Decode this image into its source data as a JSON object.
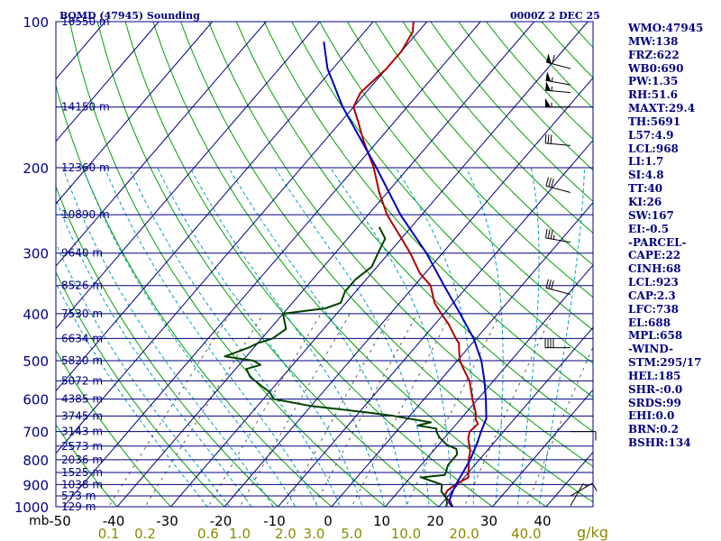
{
  "header": {
    "station": "BQMD (47945) Sounding",
    "time": "0000Z  2 DEC 25"
  },
  "colors": {
    "frame": "#000080",
    "isobar": "#000080",
    "isotherm": "#000080",
    "dry_adiabat": "#00a000",
    "moist_adiabat": "#00a0c0",
    "mixing_ratio": "#606060",
    "temperature": "#b00000",
    "dewpoint": "#004000",
    "parcel": "#0000c0",
    "axis_text": "#000000",
    "mixing_ratio_labels": "#8a8a00"
  },
  "chart_data": {
    "type": "skew-t",
    "pressure_axis": {
      "unit": "mb",
      "ticks": [
        100,
        200,
        300,
        400,
        500,
        600,
        700,
        800,
        900,
        1000
      ],
      "range": [
        100,
        1000
      ],
      "scale": "log"
    },
    "temperature_axis": {
      "ticks": [
        -50,
        -40,
        -30,
        -20,
        -10,
        0,
        10,
        20,
        30,
        40
      ],
      "tick_labels": [
        "-50",
        "-40",
        "-30",
        "-20",
        "-10",
        "0",
        "10",
        "20",
        "30",
        "40"
      ],
      "range": [
        -50,
        45
      ]
    },
    "mixing_ratio_axis": {
      "unit": "g/kg",
      "ticks": [
        0.1,
        0.2,
        0.6,
        1.0,
        2.0,
        3.0,
        5.0,
        10.0,
        20.0,
        40.0
      ],
      "tick_labels": [
        "0.1",
        "0.2",
        "0.6",
        "1.0",
        "2.0",
        "3.0",
        "5.0",
        "10.0",
        "20.0",
        "40.0"
      ]
    },
    "height_labels": [
      {
        "p": 100,
        "label": "16550 m"
      },
      {
        "p": 150,
        "label": "14150 m"
      },
      {
        "p": 200,
        "label": "12360 m"
      },
      {
        "p": 250,
        "label": "10890 m"
      },
      {
        "p": 300,
        "label": "9640 m"
      },
      {
        "p": 350,
        "label": "8526 m"
      },
      {
        "p": 400,
        "label": "7530 m"
      },
      {
        "p": 450,
        "label": "6634 m"
      },
      {
        "p": 500,
        "label": "5820 m"
      },
      {
        "p": 550,
        "label": "5072 m"
      },
      {
        "p": 600,
        "label": "4385 m"
      },
      {
        "p": 650,
        "label": "3745 m"
      },
      {
        "p": 700,
        "label": "3143 m"
      },
      {
        "p": 750,
        "label": "2573 m"
      },
      {
        "p": 800,
        "label": "2036 m"
      },
      {
        "p": 850,
        "label": "1525 m"
      },
      {
        "p": 900,
        "label": "1038 m"
      },
      {
        "p": 950,
        "label": "573 m"
      },
      {
        "p": 1000,
        "label": "129 m"
      }
    ],
    "series": [
      {
        "key": "temperature",
        "points": [
          {
            "p": 1008,
            "t": 23.0
          },
          {
            "p": 980,
            "t": 21.5
          },
          {
            "p": 950,
            "t": 19.3
          },
          {
            "p": 925,
            "t": 19.0
          },
          {
            "p": 900,
            "t": 19.5
          },
          {
            "p": 870,
            "t": 20.8
          },
          {
            "p": 850,
            "t": 20.0
          },
          {
            "p": 820,
            "t": 18.9
          },
          {
            "p": 800,
            "t": 18.0
          },
          {
            "p": 770,
            "t": 17.0
          },
          {
            "p": 750,
            "t": 16.0
          },
          {
            "p": 725,
            "t": 14.6
          },
          {
            "p": 700,
            "t": 13.7
          },
          {
            "p": 675,
            "t": 14.0
          },
          {
            "p": 660,
            "t": 12.8
          },
          {
            "p": 640,
            "t": 11.8
          },
          {
            "p": 600,
            "t": 9.0
          },
          {
            "p": 550,
            "t": 5.5
          },
          {
            "p": 520,
            "t": 2.5
          },
          {
            "p": 500,
            "t": 0.5
          },
          {
            "p": 480,
            "t": -1.0
          },
          {
            "p": 460,
            "t": -2.5
          },
          {
            "p": 450,
            "t": -3.8
          },
          {
            "p": 420,
            "t": -7.5
          },
          {
            "p": 400,
            "t": -10.5
          },
          {
            "p": 380,
            "t": -13.5
          },
          {
            "p": 350,
            "t": -17.0
          },
          {
            "p": 330,
            "t": -21.0
          },
          {
            "p": 300,
            "t": -26.0
          },
          {
            "p": 275,
            "t": -31.0
          },
          {
            "p": 250,
            "t": -36.5
          },
          {
            "p": 225,
            "t": -41.5
          },
          {
            "p": 200,
            "t": -46.5
          },
          {
            "p": 175,
            "t": -53.0
          },
          {
            "p": 160,
            "t": -57.0
          },
          {
            "p": 150,
            "t": -60.0
          },
          {
            "p": 140,
            "t": -61.0
          },
          {
            "p": 125,
            "t": -60.0
          },
          {
            "p": 115,
            "t": -60.0
          },
          {
            "p": 105,
            "t": -61.0
          },
          {
            "p": 100,
            "t": -62.5
          }
        ]
      },
      {
        "key": "dewpoint",
        "points": [
          {
            "p": 1008,
            "t": 21.5
          },
          {
            "p": 985,
            "t": 21.0
          },
          {
            "p": 960,
            "t": 20.0
          },
          {
            "p": 930,
            "t": 18.0
          },
          {
            "p": 900,
            "t": 17.0
          },
          {
            "p": 870,
            "t": 12.0
          },
          {
            "p": 860,
            "t": 16.0
          },
          {
            "p": 850,
            "t": 15.8
          },
          {
            "p": 820,
            "t": 15.0
          },
          {
            "p": 800,
            "t": 15.0
          },
          {
            "p": 780,
            "t": 15.0
          },
          {
            "p": 760,
            "t": 14.0
          },
          {
            "p": 745,
            "t": 11.5
          },
          {
            "p": 720,
            "t": 9.0
          },
          {
            "p": 700,
            "t": 7.5
          },
          {
            "p": 690,
            "t": 7.0
          },
          {
            "p": 680,
            "t": 3.0
          },
          {
            "p": 670,
            "t": 5.0
          },
          {
            "p": 660,
            "t": 1.0
          },
          {
            "p": 650,
            "t": -3.0
          },
          {
            "p": 640,
            "t": -8.0
          },
          {
            "p": 620,
            "t": -20.0
          },
          {
            "p": 600,
            "t": -28.0
          },
          {
            "p": 580,
            "t": -30.0
          },
          {
            "p": 560,
            "t": -33.0
          },
          {
            "p": 540,
            "t": -36.0
          },
          {
            "p": 520,
            "t": -38.0
          },
          {
            "p": 510,
            "t": -36.0
          },
          {
            "p": 500,
            "t": -38.0
          },
          {
            "p": 490,
            "t": -44.0
          },
          {
            "p": 470,
            "t": -41.0
          },
          {
            "p": 460,
            "t": -40.0
          },
          {
            "p": 450,
            "t": -38.0
          },
          {
            "p": 430,
            "t": -37.0
          },
          {
            "p": 410,
            "t": -39.0
          },
          {
            "p": 400,
            "t": -40.0
          },
          {
            "p": 390,
            "t": -33.0
          },
          {
            "p": 380,
            "t": -31.0
          },
          {
            "p": 360,
            "t": -32.0
          },
          {
            "p": 340,
            "t": -32.0
          },
          {
            "p": 320,
            "t": -31.0
          },
          {
            "p": 300,
            "t": -32.0
          },
          {
            "p": 280,
            "t": -33.0
          },
          {
            "p": 265,
            "t": -36.0
          }
        ]
      },
      {
        "key": "parcel",
        "points": [
          {
            "p": 1008,
            "t": 23.0
          },
          {
            "p": 980,
            "t": 21.2
          },
          {
            "p": 950,
            "t": 20.5
          },
          {
            "p": 923,
            "t": 20.0
          },
          {
            "p": 900,
            "t": 19.6
          },
          {
            "p": 850,
            "t": 19.0
          },
          {
            "p": 800,
            "t": 18.3
          },
          {
            "p": 750,
            "t": 17.2
          },
          {
            "p": 738,
            "t": 16.9
          },
          {
            "p": 700,
            "t": 15.8
          },
          {
            "p": 658,
            "t": 14.7
          },
          {
            "p": 600,
            "t": 11.5
          },
          {
            "p": 550,
            "t": 8.3
          },
          {
            "p": 500,
            "t": 4.5
          },
          {
            "p": 450,
            "t": -0.5
          },
          {
            "p": 400,
            "t": -7.0
          },
          {
            "p": 350,
            "t": -14.5
          },
          {
            "p": 300,
            "t": -23.0
          },
          {
            "p": 250,
            "t": -34.0
          },
          {
            "p": 200,
            "t": -46.0
          },
          {
            "p": 150,
            "t": -62.0
          },
          {
            "p": 125,
            "t": -71.0
          },
          {
            "p": 110,
            "t": -76.0
          }
        ]
      }
    ],
    "wind_barbs": [
      {
        "p": 125,
        "dir": 285,
        "spd": 60
      },
      {
        "p": 135,
        "dir": 280,
        "spd": 55
      },
      {
        "p": 140,
        "dir": 275,
        "spd": 55
      },
      {
        "p": 150,
        "dir": 270,
        "spd": 55
      },
      {
        "p": 180,
        "dir": 275,
        "spd": 30
      },
      {
        "p": 225,
        "dir": 285,
        "spd": 30
      },
      {
        "p": 285,
        "dir": 280,
        "spd": 35
      },
      {
        "p": 365,
        "dir": 285,
        "spd": 30
      },
      {
        "p": 470,
        "dir": 270,
        "spd": 40
      },
      {
        "p": 700,
        "dir": 90,
        "spd": 10
      },
      {
        "p": 950,
        "dir": 60,
        "spd": 10
      },
      {
        "p": 995,
        "dir": 30,
        "spd": 5
      }
    ]
  },
  "indices": [
    "WMO:47945",
    "MW:138",
    "FRZ:622",
    "WB0:690",
    "PW:1.35",
    "RH:51.6",
    "MAXT:29.4",
    "TH:5691",
    "L57:4.9",
    "LCL:968",
    "LI:1.7",
    "SI:4.8",
    "TT:40",
    "KI:26",
    "SW:167",
    "EI:-0.5",
    "-PARCEL-",
    "CAPE:22",
    "CINH:68",
    "LCL:923",
    "CAP:2.3",
    "LFC:738",
    "EL:688",
    "MPL:658",
    "-WIND-",
    "STM:295/17",
    "HEL:185",
    "SHR-:0.0",
    "SRDS:99",
    "EHI:0.0",
    "BRN:0.2",
    "BSHR:134"
  ]
}
